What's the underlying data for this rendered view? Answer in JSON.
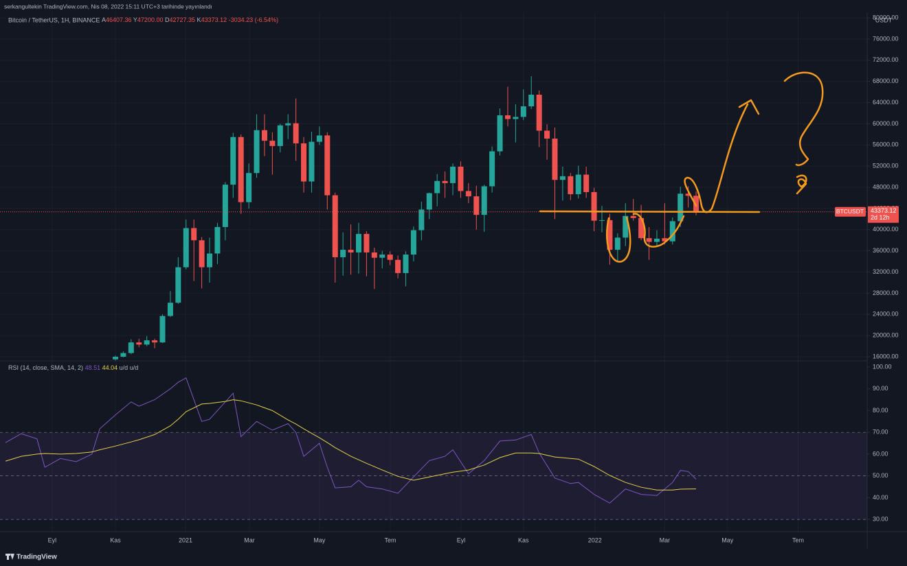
{
  "header": {
    "publisher": "serkangultekin TradingView.com, Nis 08, 2022 15:11 UTC+3 tarihinde yayınlandı"
  },
  "footer": {
    "logo": "TradingView"
  },
  "chart_data": [
    {
      "type": "candlestick",
      "legend_title": "Bitcoin / TetherUS, 1H, BINANCE",
      "ohlc_labels": [
        "A",
        "Y",
        "D",
        "K"
      ],
      "ohlc_value_labels": [
        "46407.36",
        "47200.00",
        "42727.35",
        "43373.12"
      ],
      "change": "-3034.23 (-6.54%)",
      "currency": "USDT",
      "symbol": "BTCUSDT",
      "countdown": "2d 12h",
      "up_color": "#26a69a",
      "down_color": "#ef5350",
      "grid": true,
      "x": [
        0,
        1,
        2,
        3,
        4,
        5,
        6,
        7,
        8,
        9,
        10,
        11,
        12,
        13,
        14,
        15,
        16,
        17,
        18,
        19,
        20,
        21,
        22,
        23,
        24,
        25,
        26,
        27,
        28,
        29,
        30,
        31,
        32,
        33,
        34,
        35,
        36,
        37,
        38,
        39,
        40,
        41,
        42,
        43,
        44,
        45,
        46,
        47,
        48,
        49,
        50,
        51,
        52,
        53,
        54,
        55,
        56,
        57,
        58,
        59,
        60,
        61,
        62,
        63,
        64,
        65,
        66,
        67,
        68,
        69,
        70,
        71,
        72,
        73,
        74
      ],
      "open": [
        15500,
        16000,
        16700,
        18700,
        18300,
        19100,
        18700,
        23700,
        26200,
        32900,
        40300,
        38000,
        32900,
        35500,
        40500,
        48500,
        57500,
        45200,
        50700,
        58800,
        56800,
        55800,
        59700,
        60100,
        56300,
        49100,
        56600,
        57800,
        46500,
        34800,
        36200,
        35700,
        39200,
        35700,
        34700,
        35300,
        34300,
        31800,
        35300,
        39900,
        43800,
        46900,
        49200,
        48800,
        51900,
        47300,
        46300,
        42800,
        48200,
        54800,
        61600,
        60900,
        61300,
        63300,
        65500,
        58700,
        57200,
        49400,
        50100,
        46700,
        50400,
        47100,
        41700,
        41800,
        36200,
        38500,
        42600,
        42200,
        38400,
        37700,
        38400,
        37800,
        41600,
        46800,
        46407.36
      ],
      "high": [
        16200,
        17000,
        19300,
        19400,
        19900,
        19400,
        24000,
        28400,
        34800,
        41900,
        41900,
        38600,
        38500,
        41300,
        49000,
        58300,
        58000,
        52500,
        61800,
        61800,
        58400,
        60000,
        61800,
        64800,
        57500,
        58500,
        59500,
        58400,
        47000,
        39500,
        41000,
        41300,
        39700,
        36600,
        36000,
        35900,
        35100,
        35900,
        40600,
        45300,
        47000,
        50500,
        51000,
        52500,
        52900,
        48800,
        48300,
        48500,
        55700,
        62900,
        67000,
        63700,
        66500,
        69000,
        66300,
        59900,
        59300,
        51900,
        50700,
        52100,
        51900,
        47900,
        44500,
        43000,
        39300,
        45000,
        45800,
        44700,
        40500,
        39900,
        45000,
        42300,
        48100,
        48200,
        47200.0
      ],
      "low": [
        15300,
        15900,
        16500,
        17800,
        18000,
        17600,
        18600,
        23500,
        26000,
        32500,
        30300,
        28900,
        30000,
        33500,
        38000,
        46000,
        43000,
        44000,
        49800,
        53900,
        50400,
        54600,
        57100,
        53000,
        47000,
        47000,
        56000,
        43800,
        30000,
        31300,
        31500,
        31700,
        31200,
        28800,
        32700,
        33300,
        30800,
        29300,
        34000,
        38000,
        42000,
        44400,
        46000,
        46500,
        46000,
        45000,
        40000,
        39600,
        47000,
        54000,
        59500,
        56500,
        60700,
        62800,
        55600,
        53200,
        42000,
        45500,
        45600,
        45900,
        46000,
        39700,
        39500,
        33400,
        34000,
        36900,
        41700,
        38000,
        34300,
        36800,
        37200,
        37200,
        40500,
        44200,
        42727.35
      ],
      "close": [
        16000,
        16700,
        18700,
        18300,
        19100,
        18700,
        23700,
        26200,
        32900,
        40300,
        38000,
        32900,
        35500,
        40500,
        48500,
        57500,
        45200,
        50700,
        58800,
        56800,
        55800,
        59700,
        60100,
        56300,
        49100,
        56600,
        57800,
        46500,
        34800,
        36200,
        35700,
        39200,
        35700,
        34700,
        35300,
        34300,
        31800,
        35300,
        39900,
        43800,
        46900,
        49200,
        48800,
        51900,
        47300,
        46300,
        42800,
        48200,
        54800,
        61600,
        60900,
        61300,
        63300,
        65500,
        58700,
        57200,
        49400,
        50100,
        46700,
        50400,
        47100,
        41700,
        41800,
        36200,
        38500,
        42600,
        42200,
        38400,
        37700,
        38300,
        37800,
        41600,
        46800,
        46400,
        43373.12
      ],
      "xlim": [
        -14.71,
        95.8
      ],
      "xticks": [
        {
          "value": -8.06,
          "label": "Eyl"
        },
        {
          "value": 0,
          "label": "Kas"
        },
        {
          "value": 8.93,
          "label": "2021"
        },
        {
          "value": 17.08,
          "label": "Mar"
        },
        {
          "value": 26,
          "label": "May"
        },
        {
          "value": 35.03,
          "label": "Tem"
        },
        {
          "value": 44.05,
          "label": "Eyl"
        },
        {
          "value": 52,
          "label": "Kas"
        },
        {
          "value": 61.1,
          "label": "2022"
        },
        {
          "value": 70,
          "label": "Mar"
        },
        {
          "value": 78,
          "label": "May"
        },
        {
          "value": 87,
          "label": "Tem"
        }
      ],
      "ylim": [
        15350,
        81050
      ],
      "yticks": [
        {
          "value": 16000,
          "label": "16000.00"
        },
        {
          "value": 20000,
          "label": "20000.00"
        },
        {
          "value": 24000,
          "label": "24000.00"
        },
        {
          "value": 28000,
          "label": "28000.00"
        },
        {
          "value": 32000,
          "label": "32000.00"
        },
        {
          "value": 36000,
          "label": "36000.00"
        },
        {
          "value": 40000,
          "label": "40000.00"
        },
        {
          "value": 44000,
          "label": "44000.00"
        },
        {
          "value": 48000,
          "label": "48000.00"
        },
        {
          "value": 52000,
          "label": "52000.00"
        },
        {
          "value": 56000,
          "label": "56000.00"
        },
        {
          "value": 60000,
          "label": "60000.00"
        },
        {
          "value": 64000,
          "label": "64000.00"
        },
        {
          "value": 68000,
          "label": "68000.00"
        },
        {
          "value": 72000,
          "label": "72000.00"
        },
        {
          "value": 76000,
          "label": "76000.00"
        },
        {
          "value": 80000,
          "label": "80000.00"
        }
      ]
    },
    {
      "type": "line",
      "title": "RSI (14, close, SMA, 14, 2)",
      "legend_extra": [
        "u/d",
        "u/d"
      ],
      "x": [
        -14,
        -12,
        -10,
        -9,
        -7,
        -5,
        -3,
        -2,
        0,
        2,
        3,
        5,
        7,
        8,
        9,
        11,
        12,
        14,
        15,
        16,
        18,
        20,
        22,
        23,
        24,
        26,
        27,
        28,
        30,
        31,
        32,
        34,
        36,
        38,
        40,
        42,
        43,
        45,
        47,
        49,
        51,
        53,
        54,
        56,
        58,
        59,
        61,
        63,
        65,
        67,
        69,
        71,
        72,
        73,
        74
      ],
      "series": [
        {
          "name": "RSI",
          "color": "#7e57c2",
          "values": [
            65.3,
            69.4,
            67,
            54,
            58,
            56.5,
            60,
            71.6,
            78,
            84,
            82,
            85,
            90,
            93,
            95,
            75,
            76,
            84,
            88,
            68,
            75,
            71,
            74,
            70,
            59,
            65,
            54,
            44.5,
            45,
            48,
            45,
            44,
            42,
            49.5,
            57,
            59,
            62,
            51,
            57,
            66,
            66.5,
            69,
            60.5,
            49,
            46.5,
            47,
            41.5,
            37.5,
            44,
            41.5,
            41,
            47,
            52.5,
            52,
            48.51
          ]
        },
        {
          "name": "SMA",
          "color": "#e6d24a",
          "values": [
            56.8,
            59,
            60,
            60.3,
            60,
            60.3,
            61,
            62,
            63.7,
            65.6,
            66.6,
            69,
            73,
            76,
            79.5,
            83,
            83.3,
            84.2,
            85,
            84.5,
            82.6,
            80,
            75.7,
            73.8,
            71.6,
            67.5,
            65.3,
            63,
            59,
            57.4,
            55.8,
            52.7,
            49.8,
            48,
            49.5,
            51,
            51.7,
            52.7,
            55,
            58.4,
            60.5,
            60.5,
            60.3,
            58.7,
            58,
            57.7,
            54.3,
            50.2,
            47,
            44.8,
            43.5,
            43.5,
            43.9,
            44,
            44.04
          ]
        }
      ],
      "bands": {
        "upper": 70,
        "middle": 50,
        "lower": 30
      },
      "ylim": [
        25,
        102.2
      ],
      "yticks": [
        {
          "value": 30,
          "label": "30.00"
        },
        {
          "value": 40,
          "label": "40.00"
        },
        {
          "value": 50,
          "label": "50.00"
        },
        {
          "value": 60,
          "label": "60.00"
        },
        {
          "value": 70,
          "label": "70.00"
        },
        {
          "value": 80,
          "label": "80.00"
        },
        {
          "value": 90,
          "label": "90.00"
        },
        {
          "value": 100,
          "label": "100.00"
        }
      ]
    }
  ]
}
